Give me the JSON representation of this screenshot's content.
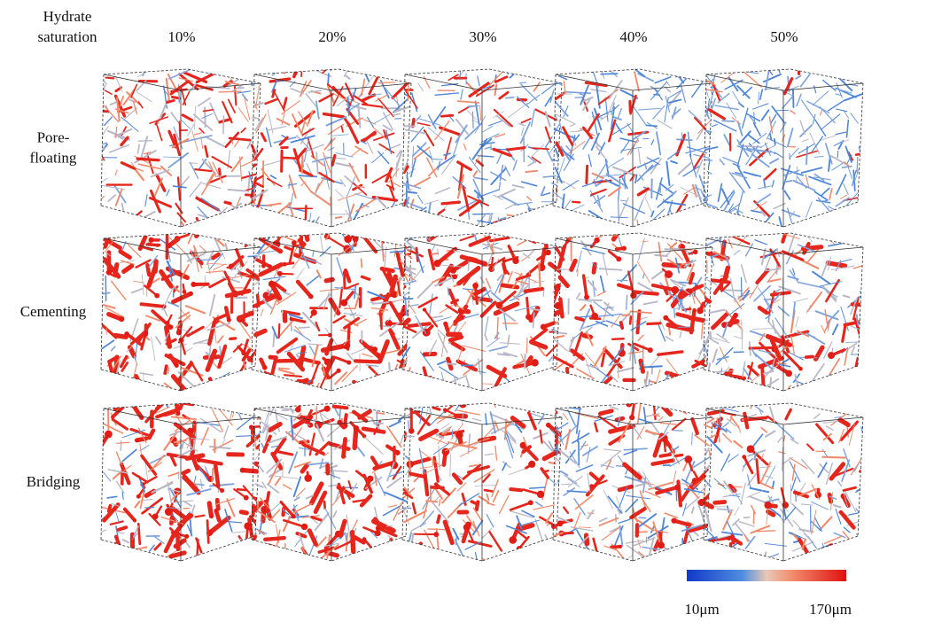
{
  "header": {
    "label": [
      "Hydrate",
      "saturation"
    ]
  },
  "columns": [
    "10%",
    "20%",
    "30%",
    "40%",
    "50%"
  ],
  "rows": [
    {
      "label": [
        "Pore-",
        "floating"
      ]
    },
    {
      "label": [
        "Cementing"
      ]
    },
    {
      "label": [
        "Bridging"
      ]
    }
  ],
  "colorbar": {
    "min_label": "10μm",
    "max_label": "170μm"
  }
}
